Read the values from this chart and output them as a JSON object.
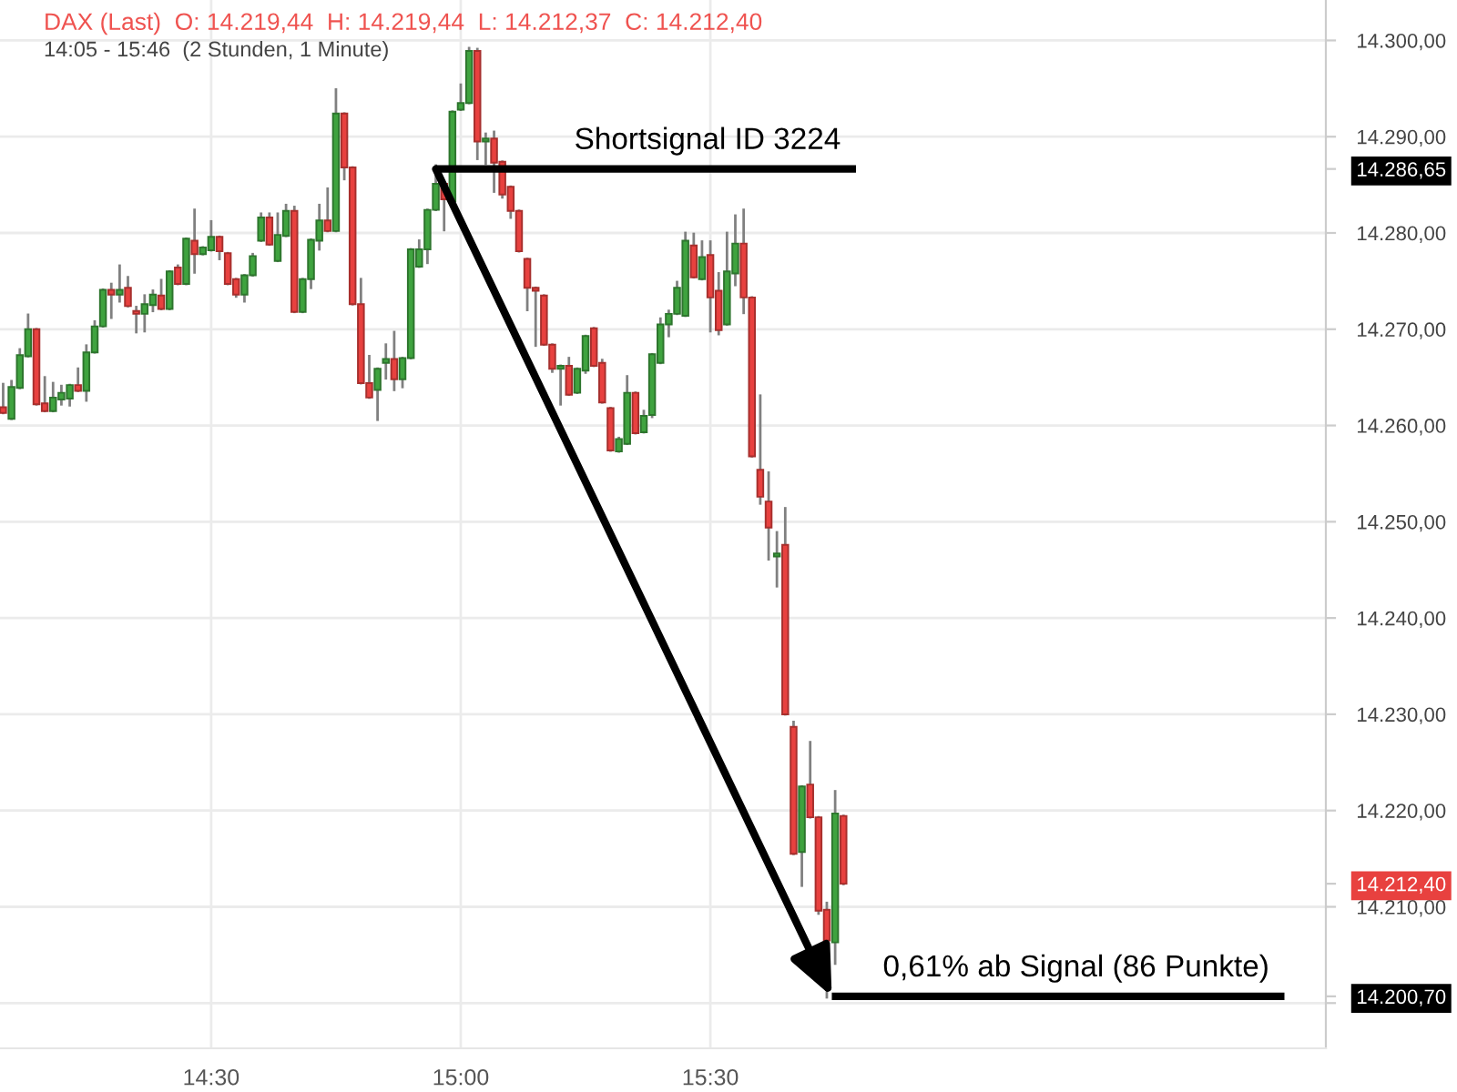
{
  "chart_data": {
    "type": "candlestick",
    "title": "DAX (Last)  O: 14.219,44  H: 14.219,44  L: 14.212,37  C: 14.212,40",
    "subtitle": "14:05 - 15:46  (2 Stunden, 1 Minute)",
    "x": [
      14.0833,
      14.1,
      14.1167,
      14.1333,
      14.15,
      14.1667,
      14.1833,
      14.2,
      14.2167,
      14.2333,
      14.25,
      14.2667,
      14.2833,
      14.3,
      14.3167,
      14.3333,
      14.35,
      14.3667,
      14.3833,
      14.4,
      14.4167,
      14.4333,
      14.45,
      14.4667,
      14.4833,
      14.5,
      14.5167,
      14.5333,
      14.55,
      14.5667,
      14.5833,
      14.6,
      14.6167,
      14.6333,
      14.65,
      14.6667,
      14.6833,
      14.7,
      14.7167,
      14.7333,
      14.75,
      14.7667,
      14.7833,
      14.8,
      14.8167,
      14.8333,
      14.85,
      14.8667,
      14.8833,
      14.9,
      14.9167,
      14.9333,
      14.95,
      14.9667,
      14.9833,
      15,
      15.0167,
      15.0333,
      15.05,
      15.0667,
      15.0833,
      15.1,
      15.1167,
      15.1333,
      15.15,
      15.1667,
      15.1833,
      15.2,
      15.2167,
      15.2333,
      15.25,
      15.2667,
      15.2833,
      15.3,
      15.3167,
      15.3333,
      15.35,
      15.3667,
      15.3833,
      15.4,
      15.4167,
      15.4333,
      15.45,
      15.4667,
      15.4833,
      15.5,
      15.5167,
      15.5333,
      15.55,
      15.5667,
      15.5833,
      15.6,
      15.6167,
      15.6333,
      15.65,
      15.6667,
      15.6833,
      15.7,
      15.7167,
      15.7333,
      15.75,
      15.7667
    ],
    "ohlc": [
      [
        14261.9,
        14264.3,
        14261.3,
        14261.3
      ],
      [
        14260.7,
        14264.6,
        14260.7,
        14264.0
      ],
      [
        14263.9,
        14267.9,
        14263.9,
        14267.3
      ],
      [
        14267.2,
        14271.5,
        14267.2,
        14270.0
      ],
      [
        14270.0,
        14270.0,
        14262.2,
        14262.2
      ],
      [
        14262.3,
        14265.0,
        14261.5,
        14261.5
      ],
      [
        14261.5,
        14264.4,
        14261.5,
        14262.9
      ],
      [
        14262.7,
        14264.1,
        14262.2,
        14263.4
      ],
      [
        14262.8,
        14264.2,
        14262.1,
        14264.2
      ],
      [
        14264.2,
        14265.9,
        14263.6,
        14263.6
      ],
      [
        14263.6,
        14268.3,
        14262.6,
        14267.6
      ],
      [
        14267.6,
        14270.8,
        14267.6,
        14270.3
      ],
      [
        14270.3,
        14274.1,
        14270.3,
        14274.1
      ],
      [
        14274.1,
        14274.7,
        14271.2,
        14273.6
      ],
      [
        14273.6,
        14276.6,
        14272.9,
        14274.1
      ],
      [
        14274.3,
        14275.4,
        14272.4,
        14272.4
      ],
      [
        14271.9,
        14272.3,
        14269.7,
        14271.6
      ],
      [
        14271.6,
        14273.5,
        14269.8,
        14272.6
      ],
      [
        14272.5,
        14274.0,
        14271.9,
        14273.6
      ],
      [
        14273.5,
        14275.1,
        14272.1,
        14272.1
      ],
      [
        14272.1,
        14276.0,
        14272.1,
        14276.0
      ],
      [
        14276.4,
        14276.6,
        14274.7,
        14274.7
      ],
      [
        14274.7,
        14279.4,
        14274.7,
        14279.4
      ],
      [
        14279.2,
        14282.4,
        14275.9,
        14277.8
      ],
      [
        14277.8,
        14278.5,
        14277.8,
        14278.5
      ],
      [
        14278.2,
        14281.2,
        14278.2,
        14279.6
      ],
      [
        14279.6,
        14279.6,
        14277.3,
        14278.1
      ],
      [
        14277.9,
        14277.9,
        14274.7,
        14274.7
      ],
      [
        14275.2,
        14275.2,
        14273.4,
        14273.6
      ],
      [
        14273.6,
        14275.6,
        14272.9,
        14275.6
      ],
      [
        14275.6,
        14277.8,
        14275.6,
        14277.6
      ],
      [
        14279.2,
        14282.0,
        14279.2,
        14281.6
      ],
      [
        14281.6,
        14282.0,
        14278.8,
        14278.8
      ],
      [
        14277.1,
        14282.0,
        14277.1,
        14279.8
      ],
      [
        14279.7,
        14282.9,
        14279.7,
        14282.3
      ],
      [
        14282.3,
        14282.7,
        14271.8,
        14271.8
      ],
      [
        14271.8,
        14275.2,
        14271.8,
        14275.2
      ],
      [
        14275.2,
        14279.3,
        14274.3,
        14279.3
      ],
      [
        14279.2,
        14282.9,
        14278.3,
        14281.3
      ],
      [
        14281.3,
        14284.6,
        14280.2,
        14280.2
      ],
      [
        14280.2,
        14294.9,
        14280.2,
        14292.4
      ],
      [
        14292.4,
        14292.4,
        14285.6,
        14286.8
      ],
      [
        14286.8,
        14286.8,
        14272.6,
        14272.6
      ],
      [
        14272.6,
        14275.2,
        14264.4,
        14264.4
      ],
      [
        14264.4,
        14267.2,
        14262.9,
        14262.9
      ],
      [
        14263.7,
        14265.9,
        14260.6,
        14265.9
      ],
      [
        14266.5,
        14268.4,
        14264.9,
        14266.9
      ],
      [
        14266.9,
        14269.7,
        14263.7,
        14264.8
      ],
      [
        14264.8,
        14267.0,
        14264.0,
        14267.0
      ],
      [
        14267.0,
        14278.3,
        14267.0,
        14278.3
      ],
      [
        14276.5,
        14279.2,
        14276.5,
        14278.3
      ],
      [
        14278.3,
        14282.4,
        14276.9,
        14282.4
      ],
      [
        14282.4,
        14287.0,
        14282.4,
        14285.1
      ],
      [
        14285.1,
        14285.1,
        14280.3,
        14283.5
      ],
      [
        14283.3,
        14292.6,
        14283.3,
        14292.6
      ],
      [
        14292.8,
        14295.4,
        14292.8,
        14293.5
      ],
      [
        14293.5,
        14299.2,
        14293.5,
        14298.9
      ],
      [
        14298.9,
        14299.1,
        14287.7,
        14289.5
      ],
      [
        14289.5,
        14290.3,
        14287.2,
        14289.8
      ],
      [
        14289.8,
        14290.5,
        14284.3,
        14287.3
      ],
      [
        14287.4,
        14287.4,
        14283.7,
        14284.0
      ],
      [
        14284.8,
        14284.8,
        14281.6,
        14282.3
      ],
      [
        14282.3,
        14282.3,
        14278.1,
        14278.1
      ],
      [
        14277.3,
        14277.3,
        14272.0,
        14274.3
      ],
      [
        14274.3,
        14274.3,
        14268.3,
        14274.0
      ],
      [
        14273.5,
        14273.5,
        14268.4,
        14268.4
      ],
      [
        14268.4,
        14268.4,
        14265.6,
        14265.9
      ],
      [
        14265.9,
        14266.2,
        14262.2,
        14266.2
      ],
      [
        14266.2,
        14267.0,
        14263.2,
        14263.2
      ],
      [
        14263.4,
        14265.9,
        14263.4,
        14265.9
      ],
      [
        14265.7,
        14269.3,
        14265.5,
        14269.3
      ],
      [
        14270.1,
        14270.1,
        14266.2,
        14266.2
      ],
      [
        14266.5,
        14266.8,
        14262.4,
        14262.4
      ],
      [
        14261.8,
        14261.8,
        14257.4,
        14257.4
      ],
      [
        14257.3,
        14258.7,
        14257.3,
        14258.6
      ],
      [
        14258.1,
        14265.1,
        14258.1,
        14263.4
      ],
      [
        14263.4,
        14263.4,
        14259.2,
        14259.2
      ],
      [
        14259.3,
        14261.5,
        14259.3,
        14261.0
      ],
      [
        14261.1,
        14267.4,
        14260.9,
        14267.4
      ],
      [
        14266.5,
        14271.1,
        14266.5,
        14270.5
      ],
      [
        14270.5,
        14271.9,
        14269.3,
        14271.6
      ],
      [
        14271.6,
        14274.9,
        14271.6,
        14274.3
      ],
      [
        14271.4,
        14280.0,
        14271.4,
        14279.2
      ],
      [
        14278.7,
        14279.9,
        14275.4,
        14275.4
      ],
      [
        14275.2,
        14279.1,
        14275.2,
        14277.5
      ],
      [
        14277.7,
        14279.1,
        14269.8,
        14273.3
      ],
      [
        14274.0,
        14275.8,
        14269.5,
        14269.9
      ],
      [
        14270.5,
        14280.0,
        14270.5,
        14276.0
      ],
      [
        14275.8,
        14281.8,
        14274.6,
        14278.9
      ],
      [
        14278.9,
        14282.4,
        14271.7,
        14273.3
      ],
      [
        14273.3,
        14273.3,
        14256.8,
        14256.8
      ],
      [
        14255.4,
        14263.1,
        14251.9,
        14252.6
      ],
      [
        14252.1,
        14255.1,
        14246.1,
        14249.4
      ],
      [
        14246.4,
        14248.9,
        14243.3,
        14246.7
      ],
      [
        14247.6,
        14251.4,
        14230.0,
        14230.0
      ],
      [
        14228.7,
        14229.2,
        14215.5,
        14215.5
      ],
      [
        14215.7,
        14222.5,
        14212.2,
        14222.5
      ],
      [
        14222.7,
        14227.1,
        14219.3,
        14219.3
      ],
      [
        14219.3,
        14219.3,
        14209.3,
        14209.6
      ],
      [
        14209.7,
        14210.4,
        14200.6,
        14206.5
      ],
      [
        14206.3,
        14222.0,
        14204.1,
        14219.7
      ],
      [
        14219.44,
        14219.44,
        14212.37,
        14212.4
      ]
    ],
    "colors": [
      "#e8413f",
      "#3fa33f",
      "#3fa33f",
      "#3fa33f",
      "#e8413f",
      "#e8413f",
      "#3fa33f",
      "#3fa33f",
      "#3fa33f",
      "#e8413f",
      "#3fa33f",
      "#3fa33f",
      "#3fa33f",
      "#e8413f",
      "#3fa33f",
      "#e8413f",
      "#e8413f",
      "#3fa33f",
      "#3fa33f",
      "#e8413f",
      "#3fa33f",
      "#e8413f",
      "#3fa33f",
      "#e8413f",
      "#3fa33f",
      "#3fa33f",
      "#e8413f",
      "#e8413f",
      "#e8413f",
      "#3fa33f",
      "#3fa33f",
      "#3fa33f",
      "#e8413f",
      "#3fa33f",
      "#3fa33f",
      "#e8413f",
      "#3fa33f",
      "#3fa33f",
      "#3fa33f",
      "#e8413f",
      "#3fa33f",
      "#e8413f",
      "#e8413f",
      "#e8413f",
      "#e8413f",
      "#3fa33f",
      "#3fa33f",
      "#e8413f",
      "#3fa33f",
      "#3fa33f",
      "#3fa33f",
      "#3fa33f",
      "#3fa33f",
      "#e8413f",
      "#3fa33f",
      "#3fa33f",
      "#3fa33f",
      "#e8413f",
      "#3fa33f",
      "#e8413f",
      "#e8413f",
      "#e8413f",
      "#e8413f",
      "#e8413f",
      "#e8413f",
      "#e8413f",
      "#e8413f",
      "#3fa33f",
      "#e8413f",
      "#3fa33f",
      "#3fa33f",
      "#e8413f",
      "#e8413f",
      "#e8413f",
      "#3fa33f",
      "#3fa33f",
      "#e8413f",
      "#3fa33f",
      "#3fa33f",
      "#3fa33f",
      "#3fa33f",
      "#3fa33f",
      "#3fa33f",
      "#e8413f",
      "#3fa33f",
      "#e8413f",
      "#e8413f",
      "#3fa33f",
      "#3fa33f",
      "#e8413f",
      "#e8413f",
      "#e8413f",
      "#e8413f",
      "#3fa33f",
      "#e8413f",
      "#e8413f",
      "#3fa33f",
      "#e8413f",
      "#e8413f",
      "#e8413f",
      "#3fa33f",
      "#e8413f"
    ],
    "series": [
      {
        "type": "line",
        "name": "Shortsignal ID 3224",
        "color": "#000000",
        "x": [
          14.95,
          15.7917
        ],
        "values": [
          14286.65,
          14286.65
        ]
      },
      {
        "type": "line",
        "color": "#000000",
        "x": [
          15.7433,
          16.65
        ],
        "values": [
          14200.7,
          14200.7
        ]
      }
    ],
    "annotations": [
      {
        "text": "0,61% ab Signal (86 Punkte)",
        "x": 16.65,
        "y": 14200.7
      }
    ],
    "xlim": [
      14.077,
      16.733
    ],
    "xticks": [
      {
        "value": 14.5,
        "label": "14:30"
      },
      {
        "value": 15,
        "label": "15:00"
      },
      {
        "value": 15.5,
        "label": "15:30"
      }
    ],
    "ylim": [
      14195.3,
      14304.2
    ],
    "yticks": [
      {
        "value": 14200,
        "label": null
      },
      {
        "value": 14200.7,
        "label": "14.200,70"
      },
      {
        "value": 14210,
        "label": "14.210,00"
      },
      {
        "value": 14212.4,
        "label": "14.212,40"
      },
      {
        "value": 14220,
        "label": "14.220,00"
      },
      {
        "value": 14230,
        "label": "14.230,00"
      },
      {
        "value": 14240,
        "label": "14.240,00"
      },
      {
        "value": 14250,
        "label": "14.250,00"
      },
      {
        "value": 14260,
        "label": "14.260,00"
      },
      {
        "value": 14270,
        "label": "14.270,00"
      },
      {
        "value": 14280,
        "label": "14.280,00"
      },
      {
        "value": 14286.65,
        "label": "14.286,65"
      },
      {
        "value": 14290,
        "label": "14.290,00"
      },
      {
        "value": 14300,
        "label": "14.300,00"
      }
    ],
    "grid": true
  }
}
